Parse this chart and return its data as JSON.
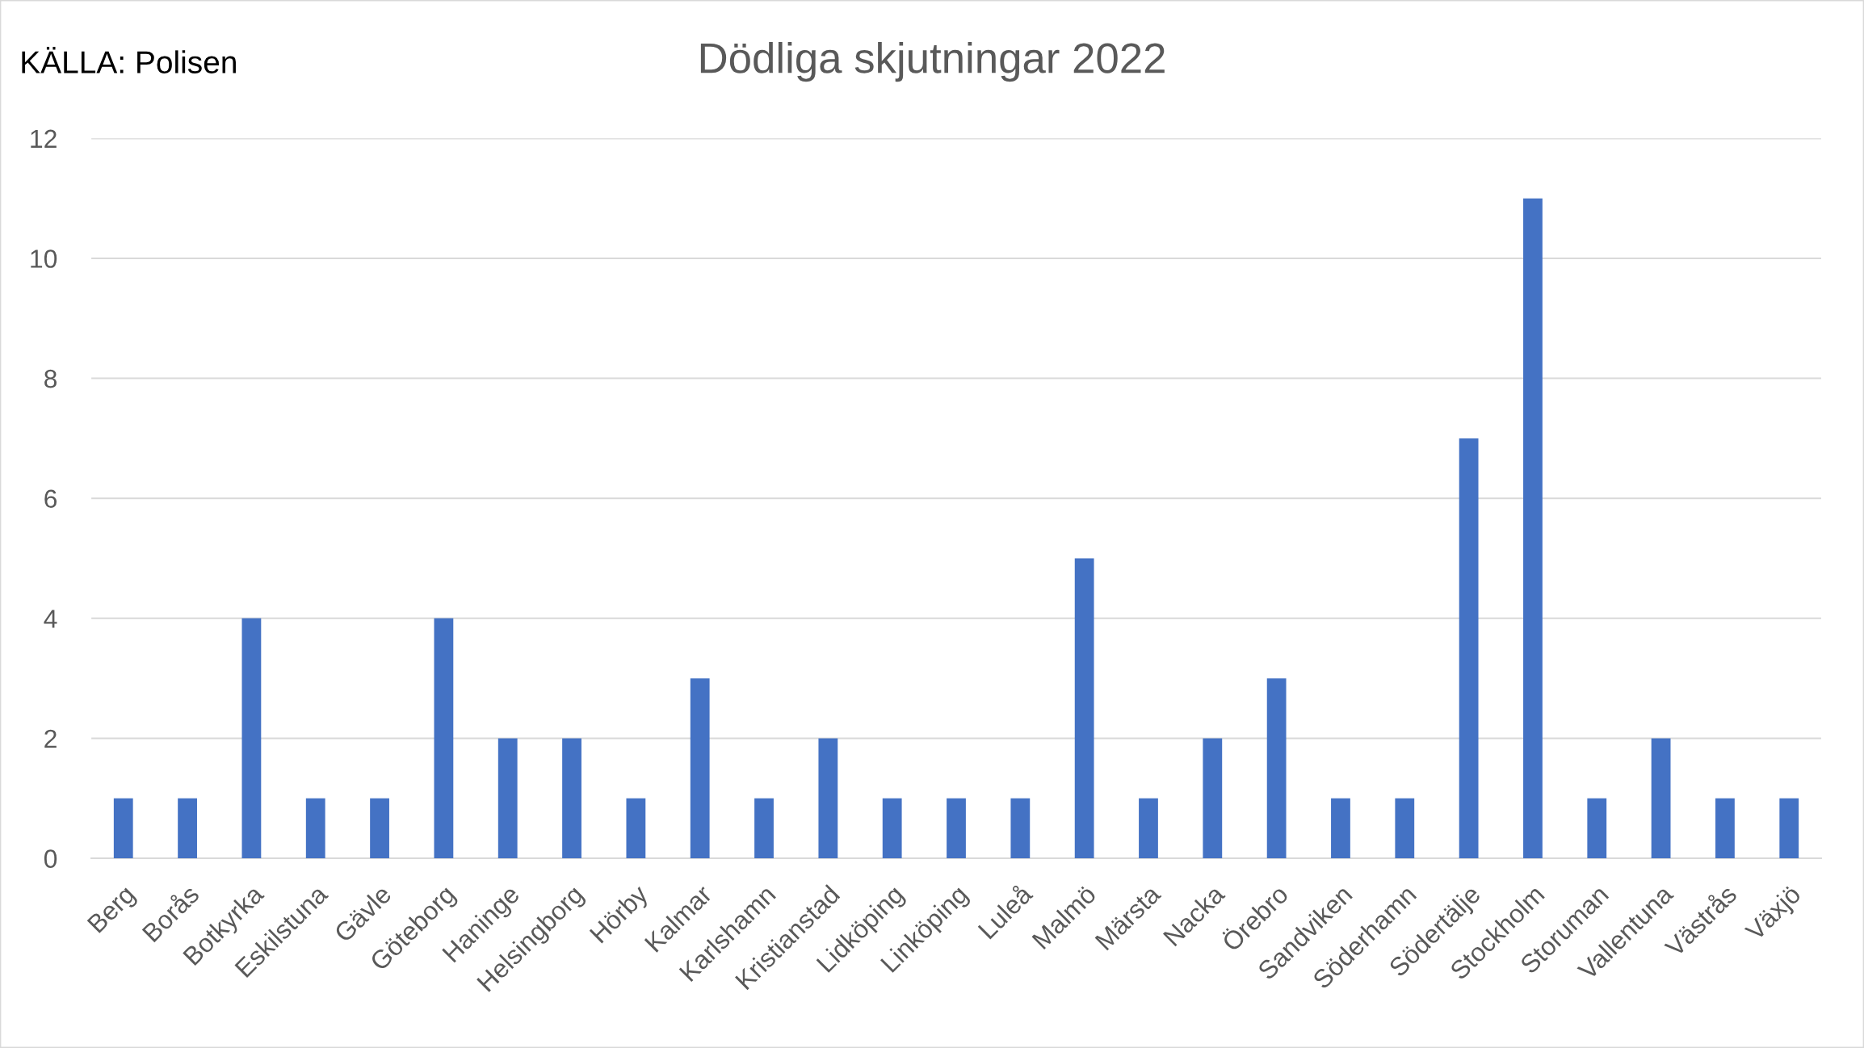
{
  "chart_data": {
    "type": "bar",
    "title": "Dödliga skjutningar 2022",
    "annotations": [
      "KÄLLA: Polisen"
    ],
    "categories": [
      "Berg",
      "Borås",
      "Botkyrka",
      "Eskilstuna",
      "Gävle",
      "Göteborg",
      "Haninge",
      "Helsingborg",
      "Hörby",
      "Kalmar",
      "Karlshamn",
      "Kristianstad",
      "Lidköping",
      "Linköping",
      "Luleå",
      "Malmö",
      "Märsta",
      "Nacka",
      "Örebro",
      "Sandviken",
      "Söderhamn",
      "Södertälje",
      "Stockholm",
      "Storuman",
      "Vallentuna",
      "Västrås",
      "Växjö"
    ],
    "values": [
      1,
      1,
      4,
      1,
      1,
      4,
      2,
      2,
      1,
      3,
      1,
      2,
      1,
      1,
      1,
      5,
      1,
      2,
      3,
      1,
      1,
      7,
      11,
      1,
      2,
      1,
      1
    ],
    "color": "#4472c4",
    "ylim": [
      0,
      12
    ],
    "yticks": [
      0,
      2,
      4,
      6,
      8,
      10,
      12
    ],
    "grid": "y"
  }
}
